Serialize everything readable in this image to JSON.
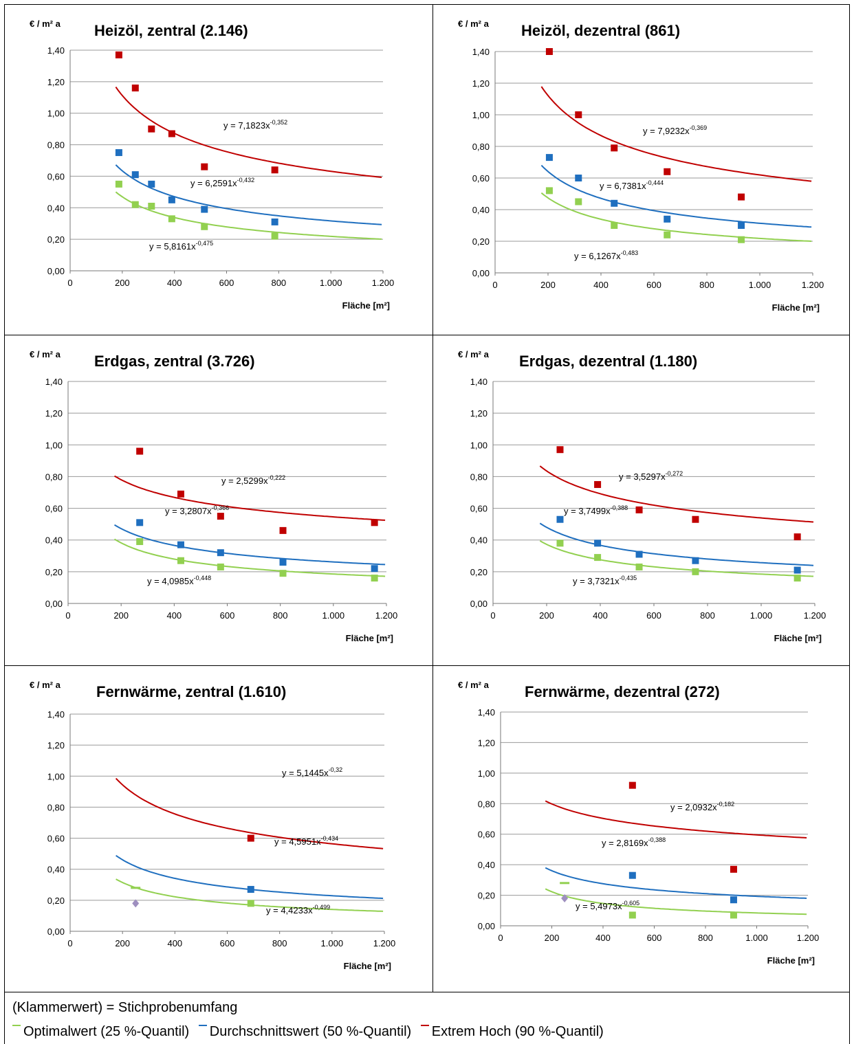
{
  "colors": {
    "optimal": "#92d050",
    "average": "#1f6fbf",
    "high": "#c00000",
    "outlier": "#9e8fbf",
    "grid": "#888888"
  },
  "footnote": "(Klammerwert) = Stichprobenumfang",
  "legend": [
    {
      "key": "optimal",
      "label": "Optimalwert (25 %-Quantil)"
    },
    {
      "key": "average",
      "label": "Durchschnittswert (50 %-Quantil)"
    },
    {
      "key": "high",
      "label": "Extrem Hoch (90 %-Quantil)"
    }
  ],
  "chart_data": [
    {
      "type": "scatter",
      "title": "Heizöl, zentral (2.146)",
      "ylabel": "€ / m² a",
      "xlabel": "Fläche [m²]",
      "xlim": [
        0,
        1200
      ],
      "ylim": [
        0,
        1.4
      ],
      "grid": true,
      "xticks": [
        "0",
        "200",
        "400",
        "600",
        "800",
        "1.000",
        "1.200"
      ],
      "yticks": [
        "0,00",
        "0,20",
        "0,40",
        "0,60",
        "0,80",
        "1,00",
        "1,20",
        "1,40"
      ],
      "series": [
        {
          "key": "high",
          "points": [
            [
              187,
              1.37
            ],
            [
              250,
              1.16
            ],
            [
              312,
              0.9
            ],
            [
              390,
              0.87
            ],
            [
              515,
              0.66
            ],
            [
              785,
              0.64
            ]
          ],
          "trend": {
            "a": 7.1823,
            "b": -0.352,
            "label": "y = 7,1823x",
            "exp": "-0,352"
          }
        },
        {
          "key": "average",
          "points": [
            [
              187,
              0.75
            ],
            [
              250,
              0.61
            ],
            [
              312,
              0.55
            ],
            [
              390,
              0.45
            ],
            [
              515,
              0.39
            ],
            [
              785,
              0.31
            ]
          ],
          "trend": {
            "a": 6.2591,
            "b": -0.432,
            "label": "y = 6,2591x",
            "exp": "-0,432"
          }
        },
        {
          "key": "optimal",
          "points": [
            [
              187,
              0.55
            ],
            [
              250,
              0.42
            ],
            [
              312,
              0.41
            ],
            [
              390,
              0.33
            ],
            [
              515,
              0.28
            ],
            [
              785,
              0.22
            ]
          ],
          "trend": {
            "a": 5.8161,
            "b": -0.475,
            "label": "y = 5,8161x",
            "exp": "-0,475"
          }
        }
      ]
    },
    {
      "type": "scatter",
      "title": "Heizöl, dezentral (861)",
      "ylabel": "€ / m² a",
      "xlabel": "Fläche [m²]",
      "xlim": [
        0,
        1200
      ],
      "ylim": [
        0,
        1.4
      ],
      "grid": true,
      "xticks": [
        "0",
        "200",
        "400",
        "600",
        "800",
        "1.000",
        "1.200"
      ],
      "yticks": [
        "0,00",
        "0,20",
        "0,40",
        "0,60",
        "0,80",
        "1,00",
        "1,20",
        "1,40"
      ],
      "series": [
        {
          "key": "high",
          "points": [
            [
              205,
              1.4
            ],
            [
              315,
              1.0
            ],
            [
              450,
              0.79
            ],
            [
              650,
              0.64
            ],
            [
              930,
              0.48
            ]
          ],
          "trend": {
            "a": 7.9232,
            "b": -0.369,
            "label": "y = 7,9232x",
            "exp": "-0,369"
          }
        },
        {
          "key": "average",
          "points": [
            [
              205,
              0.73
            ],
            [
              315,
              0.6
            ],
            [
              450,
              0.44
            ],
            [
              650,
              0.34
            ],
            [
              930,
              0.3
            ]
          ],
          "trend": {
            "a": 6.7381,
            "b": -0.444,
            "label": "y = 6,7381x",
            "exp": "-0,444"
          }
        },
        {
          "key": "optimal",
          "points": [
            [
              205,
              0.52
            ],
            [
              315,
              0.45
            ],
            [
              450,
              0.3
            ],
            [
              650,
              0.24
            ],
            [
              930,
              0.21
            ]
          ],
          "trend": {
            "a": 6.1267,
            "b": -0.483,
            "label": "y = 6,1267x",
            "exp": "-0,483"
          }
        }
      ]
    },
    {
      "type": "scatter",
      "title": "Erdgas, zentral (3.726)",
      "ylabel": "€ / m² a",
      "xlabel": "Fläche [m²]",
      "xlim": [
        0,
        1200
      ],
      "ylim": [
        0,
        1.4
      ],
      "grid": true,
      "xticks": [
        "0",
        "200",
        "400",
        "600",
        "800",
        "1.000",
        "1.200"
      ],
      "yticks": [
        "0,00",
        "0,20",
        "0,40",
        "0,60",
        "0,80",
        "1,00",
        "1,20",
        "1,40"
      ],
      "series": [
        {
          "key": "high",
          "points": [
            [
              270,
              0.96
            ],
            [
              425,
              0.69
            ],
            [
              575,
              0.55
            ],
            [
              810,
              0.46
            ],
            [
              1155,
              0.51
            ]
          ],
          "trend": {
            "a": 2.5299,
            "b": -0.222,
            "label": "y = 2,5299x",
            "exp": "-0,222"
          }
        },
        {
          "key": "average",
          "points": [
            [
              270,
              0.51
            ],
            [
              425,
              0.37
            ],
            [
              575,
              0.32
            ],
            [
              810,
              0.26
            ],
            [
              1155,
              0.22
            ]
          ],
          "trend": {
            "a": 3.2807,
            "b": -0.366,
            "label": "y = 3,2807x",
            "exp": "-0,366"
          }
        },
        {
          "key": "optimal",
          "points": [
            [
              270,
              0.39
            ],
            [
              425,
              0.27
            ],
            [
              575,
              0.23
            ],
            [
              810,
              0.19
            ],
            [
              1155,
              0.16
            ]
          ],
          "trend": {
            "a": 4.0985,
            "b": -0.448,
            "label": "y = 4,0985x",
            "exp": "-0,448"
          }
        }
      ]
    },
    {
      "type": "scatter",
      "title": "Erdgas, dezentral (1.180)",
      "ylabel": "€ / m² a",
      "xlabel": "Fläche [m²]",
      "xlim": [
        0,
        1200
      ],
      "ylim": [
        0,
        1.4
      ],
      "grid": true,
      "xticks": [
        "0",
        "200",
        "400",
        "600",
        "800",
        "1.000",
        "1.200"
      ],
      "yticks": [
        "0,00",
        "0,20",
        "0,40",
        "0,60",
        "0,80",
        "1,00",
        "1,20",
        "1,40"
      ],
      "series": [
        {
          "key": "high",
          "points": [
            [
              250,
              0.97
            ],
            [
              390,
              0.75
            ],
            [
              545,
              0.59
            ],
            [
              755,
              0.53
            ],
            [
              1135,
              0.42
            ]
          ],
          "trend": {
            "a": 3.5297,
            "b": -0.272,
            "label": "y = 3,5297x",
            "exp": "-0,272"
          }
        },
        {
          "key": "average",
          "points": [
            [
              250,
              0.53
            ],
            [
              390,
              0.38
            ],
            [
              545,
              0.31
            ],
            [
              755,
              0.27
            ],
            [
              1135,
              0.21
            ]
          ],
          "trend": {
            "a": 3.7499,
            "b": -0.388,
            "label": "y = 3,7499x",
            "exp": "-0,388"
          }
        },
        {
          "key": "optimal",
          "points": [
            [
              250,
              0.38
            ],
            [
              390,
              0.29
            ],
            [
              545,
              0.23
            ],
            [
              755,
              0.2
            ],
            [
              1135,
              0.16
            ]
          ],
          "trend": {
            "a": 3.7321,
            "b": -0.435,
            "label": "y = 3,7321x",
            "exp": "-0,435"
          }
        }
      ]
    },
    {
      "type": "scatter",
      "title": "Fernwärme, zentral (1.610)",
      "ylabel": "€ / m² a",
      "xlabel": "Fläche [m²]",
      "xlim": [
        0,
        1200
      ],
      "ylim": [
        0,
        1.4
      ],
      "grid": true,
      "xticks": [
        "0",
        "200",
        "400",
        "600",
        "800",
        "1.000",
        "1.200"
      ],
      "yticks": [
        "0,00",
        "0,20",
        "0,40",
        "0,60",
        "0,80",
        "1,00",
        "1,20",
        "1,40"
      ],
      "series": [
        {
          "key": "high",
          "points": [
            [
              690,
              0.6
            ]
          ],
          "trend": {
            "a": 5.1445,
            "b": -0.32,
            "label": "y = 5,1445x",
            "exp": "-0,32"
          }
        },
        {
          "key": "average",
          "points": [
            [
              690,
              0.27
            ]
          ],
          "trend": {
            "a": 4.5951,
            "b": -0.434,
            "label": "y = 4,5951x",
            "exp": "-0,434"
          }
        },
        {
          "key": "optimal",
          "points": [
            [
              690,
              0.18
            ]
          ],
          "trend": {
            "a": 4.4233,
            "b": -0.499,
            "label": "y = 4,4233x",
            "exp": "-0,499"
          }
        },
        {
          "key": "outlier",
          "marker": "diamond",
          "points": [
            [
              250,
              0.18
            ]
          ]
        },
        {
          "key": "optimal",
          "marker": "dash",
          "points": [
            [
              250,
              0.28
            ]
          ]
        }
      ]
    },
    {
      "type": "scatter",
      "title": "Fernwärme, dezentral (272)",
      "ylabel": "€ / m² a",
      "xlabel": "Fläche [m²]",
      "xlim": [
        0,
        1200
      ],
      "ylim": [
        0,
        1.4
      ],
      "grid": true,
      "xticks": [
        "0",
        "200",
        "400",
        "600",
        "800",
        "1.000",
        "1.200"
      ],
      "yticks": [
        "0,00",
        "0,20",
        "0,40",
        "0,60",
        "0,80",
        "1,00",
        "1,20",
        "1,40"
      ],
      "series": [
        {
          "key": "high",
          "points": [
            [
              515,
              0.92
            ],
            [
              910,
              0.37
            ]
          ],
          "trend": {
            "a": 2.0932,
            "b": -0.182,
            "label": "y = 2,0932x",
            "exp": "-0,182"
          }
        },
        {
          "key": "average",
          "points": [
            [
              515,
              0.33
            ],
            [
              910,
              0.17
            ]
          ],
          "trend": {
            "a": 2.8169,
            "b": -0.388,
            "label": "y = 2,8169x",
            "exp": "-0,388"
          }
        },
        {
          "key": "optimal",
          "points": [
            [
              515,
              0.07
            ],
            [
              910,
              0.07
            ]
          ],
          "trend": {
            "a": 5.4973,
            "b": -0.605,
            "label": "y = 5,4973x",
            "exp": "-0,605"
          }
        },
        {
          "key": "outlier",
          "marker": "diamond",
          "points": [
            [
              250,
              0.18
            ]
          ]
        },
        {
          "key": "optimal",
          "marker": "dash",
          "points": [
            [
              250,
              0.28
            ]
          ]
        }
      ]
    }
  ]
}
